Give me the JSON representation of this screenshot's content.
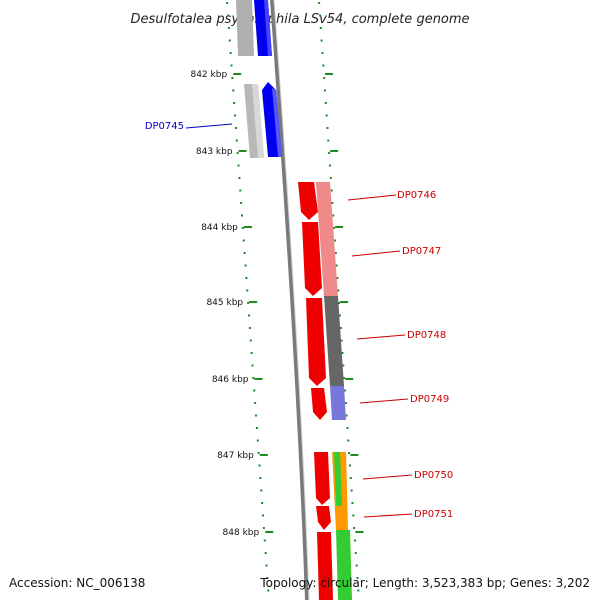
{
  "title": "Desulfotalea psychrophila LSv54, complete genome",
  "accession": "Accession: NC_006138",
  "topology": "Topology: circular; Length: 3,523,383 bp; Genes: 3,202",
  "colors": {
    "backbone": "#8a8a8a",
    "ticks": "#1f8a1f",
    "forward_gene": "#0000ee",
    "reverse_gene": "#ee0000",
    "label_forward": "#0000cc",
    "label_reverse": "#cc0000"
  },
  "scale_labels": [
    "842 kbp",
    "843 kbp",
    "844 kbp",
    "845 kbp",
    "846 kbp",
    "847 kbp",
    "848 kbp"
  ],
  "genes": [
    {
      "id": "DP0745",
      "strand": "forward"
    },
    {
      "id": "DP0746",
      "strand": "reverse"
    },
    {
      "id": "DP0747",
      "strand": "reverse"
    },
    {
      "id": "DP0748",
      "strand": "reverse"
    },
    {
      "id": "DP0749",
      "strand": "reverse"
    },
    {
      "id": "DP0750",
      "strand": "reverse"
    },
    {
      "id": "DP0751",
      "strand": "reverse"
    }
  ]
}
